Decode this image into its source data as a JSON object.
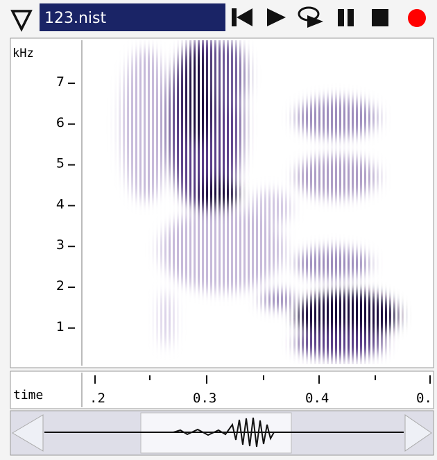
{
  "toolbar": {
    "filename": "123.nist"
  },
  "spectrogram": {
    "y_unit": "kHz",
    "y_labels": [
      "7",
      "6",
      "5",
      "4",
      "3",
      "2",
      "1"
    ]
  },
  "time_axis": {
    "label": "time",
    "tick_labels": [
      ".2",
      "0.3",
      "0.4",
      "0."
    ]
  }
}
